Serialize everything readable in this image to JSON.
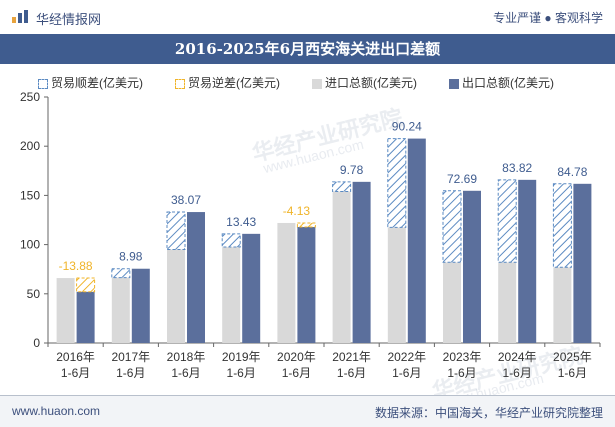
{
  "header": {
    "brand": "华经情报网",
    "tagline": "专业严谨 ● 客观科学"
  },
  "title": "2016-2025年6月西安海关进出口差额",
  "watermark": {
    "text": "华经产业研究院",
    "url": "www.huaon.com"
  },
  "footer": {
    "website": "www.huaon.com",
    "source": "数据来源：中国海关，华经产业研究院整理"
  },
  "colors": {
    "title_bg": "#3f5c8f",
    "import": "#d9d9d9",
    "export": "#5b6f9c",
    "surplus": "#5b8ac2",
    "deficit": "#f0b429",
    "positive_label": "#3f5c8f",
    "negative_label": "#f0b429"
  },
  "legend": {
    "surplus": "贸易顺差(亿美元)",
    "deficit": "贸易逆差(亿美元)",
    "import": "进口总额(亿美元)",
    "export": "出口总额(亿美元)"
  },
  "chart_data": {
    "type": "bar",
    "categories": [
      "2016年\n1-6月",
      "2017年\n1-6月",
      "2018年\n1-6月",
      "2019年\n1-6月",
      "2020年\n1-6月",
      "2021年\n1-6月",
      "2022年\n1-6月",
      "2023年\n1-6月",
      "2024年\n1-6月",
      "2025年\n1-6月"
    ],
    "series": [
      {
        "name": "进口总额(亿美元)",
        "values": [
          66,
          66.5,
          95,
          97.5,
          122,
          154,
          117.5,
          82,
          82,
          77
        ]
      },
      {
        "name": "出口总额(亿美元)",
        "values": [
          52.12,
          75.48,
          133.07,
          110.93,
          117.87,
          163.78,
          207.74,
          154.69,
          165.82,
          161.78
        ]
      },
      {
        "name": "贸易差额(亿美元)",
        "values": [
          -13.88,
          8.98,
          38.07,
          13.43,
          -4.13,
          9.78,
          90.24,
          72.69,
          83.82,
          84.78
        ]
      }
    ],
    "balance_labels": [
      "-13.88",
      "8.98",
      "38.07",
      "13.43",
      "-4.13",
      "9.78",
      "90.24",
      "72.69",
      "83.82",
      "84.78"
    ],
    "y_ticks": [
      "0",
      "50",
      "100",
      "150",
      "200",
      "250"
    ],
    "ylim": [
      0,
      250
    ]
  }
}
